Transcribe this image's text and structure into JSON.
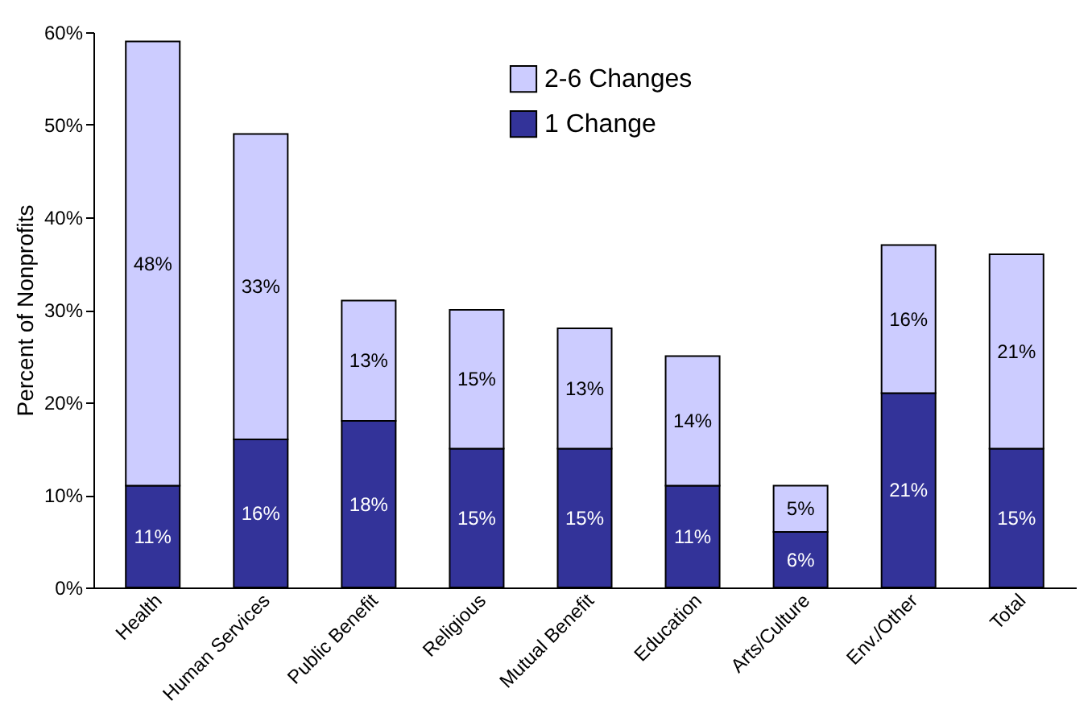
{
  "chart_data": {
    "type": "bar",
    "stacked": true,
    "ylabel": "Percent of Nonprofits",
    "categories": [
      "Health",
      "Human Services",
      "Public Benefit",
      "Religious",
      "Mutual Benefit",
      "Education",
      "Arts/Culture",
      "Env./Other",
      "Total"
    ],
    "series": [
      {
        "name": "1 Change",
        "color": "#333399",
        "values": [
          11,
          16,
          18,
          15,
          15,
          11,
          6,
          21,
          15
        ],
        "value_labels": [
          "11%",
          "16%",
          "18%",
          "15%",
          "15%",
          "11%",
          "6%",
          "21%",
          "15%"
        ]
      },
      {
        "name": "2-6 Changes",
        "color": "#ccccff",
        "values": [
          48,
          33,
          13,
          15,
          13,
          14,
          5,
          16,
          21
        ],
        "value_labels": [
          "48%",
          "33%",
          "13%",
          "15%",
          "13%",
          "14%",
          "5%",
          "16%",
          "21%"
        ]
      }
    ],
    "ylim": [
      0,
      60
    ],
    "yticks": [
      {
        "value": 0,
        "label": "0%"
      },
      {
        "value": 10,
        "label": "10%"
      },
      {
        "value": 20,
        "label": "20%"
      },
      {
        "value": 30,
        "label": "30%"
      },
      {
        "value": 40,
        "label": "40%"
      },
      {
        "value": 50,
        "label": "50%"
      },
      {
        "value": 60,
        "label": "60%"
      }
    ],
    "grid": false,
    "legend": "top"
  }
}
